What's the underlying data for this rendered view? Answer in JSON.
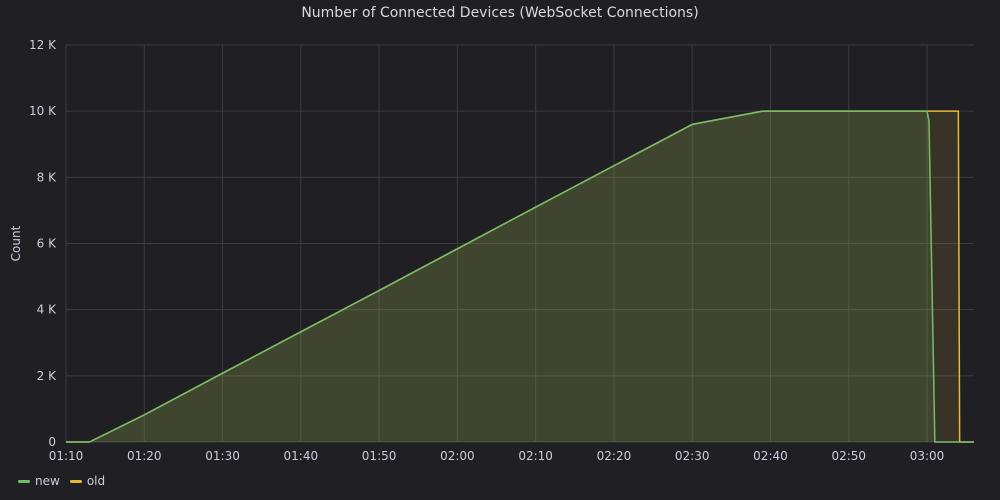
{
  "chart_data": {
    "type": "area",
    "title": "Number of Connected Devices (WebSocket Connections)",
    "xlabel": "",
    "ylabel": "Count",
    "x_ticks": [
      "01:10",
      "01:20",
      "01:30",
      "01:40",
      "01:50",
      "02:00",
      "02:10",
      "02:20",
      "02:30",
      "02:40",
      "02:50",
      "03:00"
    ],
    "y_ticks": [
      "0",
      "2 K",
      "4 K",
      "6 K",
      "8 K",
      "10 K",
      "12 K"
    ],
    "xlim": [
      "01:10",
      "03:06"
    ],
    "ylim": [
      0,
      12000
    ],
    "grid": true,
    "legend_position": "bottom-left",
    "series": [
      {
        "name": "new",
        "color": "#73bf69",
        "points": [
          [
            "01:10",
            0
          ],
          [
            "01:13",
            0
          ],
          [
            "01:20",
            820
          ],
          [
            "01:30",
            2080
          ],
          [
            "01:40",
            3330
          ],
          [
            "01:50",
            4580
          ],
          [
            "02:00",
            5840
          ],
          [
            "02:10",
            7100
          ],
          [
            "02:20",
            8350
          ],
          [
            "02:30",
            9600
          ],
          [
            "02:39",
            10000
          ],
          [
            "03:00",
            10000
          ],
          [
            "03:00:15",
            9700
          ],
          [
            "03:01",
            0
          ],
          [
            "03:06",
            0
          ]
        ]
      },
      {
        "name": "old",
        "color": "#e8b93b",
        "points": [
          [
            "01:10",
            0
          ],
          [
            "01:13",
            0
          ],
          [
            "01:20",
            820
          ],
          [
            "01:30",
            2080
          ],
          [
            "01:40",
            3330
          ],
          [
            "01:50",
            4580
          ],
          [
            "02:00",
            5840
          ],
          [
            "02:10",
            7100
          ],
          [
            "02:20",
            8350
          ],
          [
            "02:30",
            9600
          ],
          [
            "02:39",
            10000
          ],
          [
            "03:04",
            10000
          ],
          [
            "03:04:10",
            0
          ],
          [
            "03:06",
            0
          ]
        ]
      }
    ]
  }
}
